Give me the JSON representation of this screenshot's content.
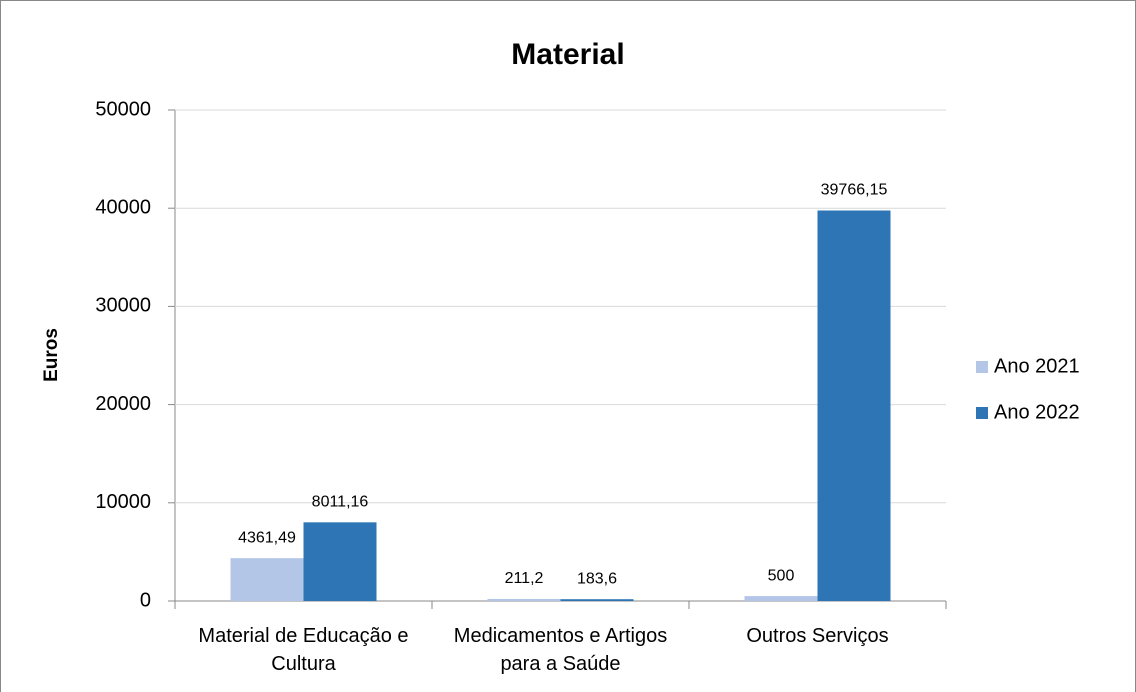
{
  "chart_data": {
    "type": "bar",
    "title": "Material",
    "y_label": "Euros",
    "categories": [
      "Material de Educação e Cultura",
      "Medicamentos e Artigos para a Saúde",
      "Outros Serviços"
    ],
    "series": [
      {
        "name": "Ano 2021",
        "color": "#b4c6e7",
        "values": [
          4361.49,
          211.2,
          500
        ],
        "value_labels": [
          "4361,49",
          "211,2",
          "500"
        ]
      },
      {
        "name": "Ano 2022",
        "color": "#2e75b6",
        "values": [
          8011.16,
          183.6,
          39766.15
        ],
        "value_labels": [
          "8011,16",
          "183,6",
          "39766,15"
        ]
      }
    ],
    "ylim": [
      0,
      50000
    ],
    "yticks": [
      0,
      10000,
      20000,
      30000,
      40000,
      50000
    ],
    "grid": true,
    "legend": "right"
  }
}
